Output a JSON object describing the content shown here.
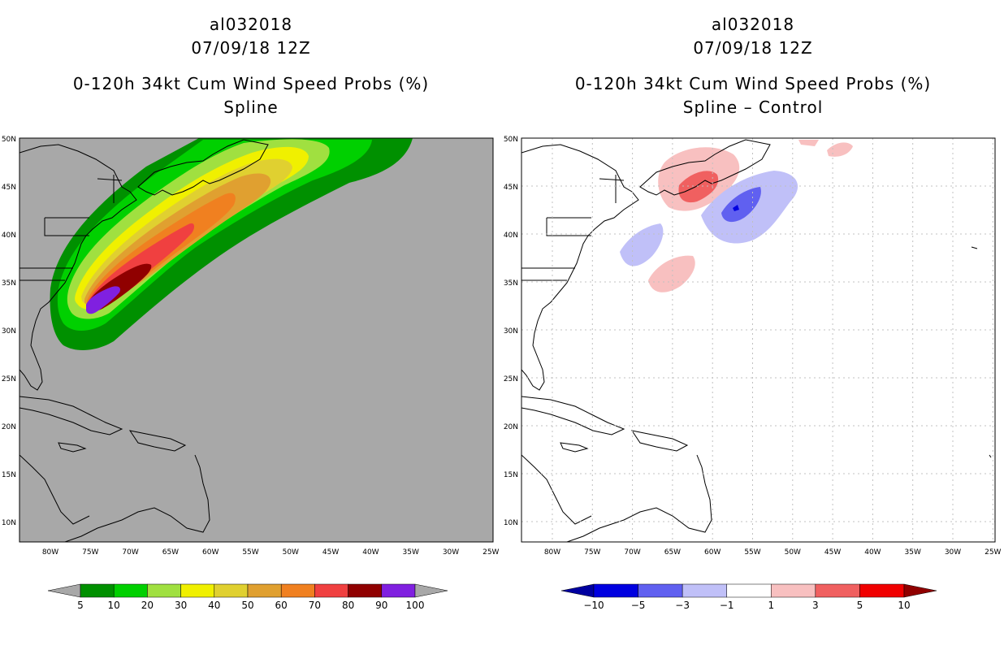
{
  "panels": [
    {
      "storm_id": "al032018",
      "date": "07/09/18 12Z",
      "product": "0-120h 34kt Cum Wind Speed Probs (%)",
      "method": "Spline",
      "background": "#a8a8a8",
      "colorbar": {
        "labels": [
          "5",
          "10",
          "20",
          "30",
          "40",
          "50",
          "60",
          "70",
          "80",
          "90",
          "100"
        ],
        "colors": [
          "#009000",
          "#00d000",
          "#a0e040",
          "#f0f000",
          "#e0d030",
          "#e0a030",
          "#f08020",
          "#f04040",
          "#900000",
          "#8020e0"
        ],
        "under_color": "#a8a8a8",
        "over_color": "#a8a8a8"
      }
    },
    {
      "storm_id": "al032018",
      "date": "07/09/18 12Z",
      "product": "0-120h 34kt Cum Wind Speed Probs (%)",
      "method": "Spline – Control",
      "background": "#ffffff",
      "colorbar": {
        "labels": [
          "−10",
          "−5",
          "−3",
          "−1",
          "1",
          "3",
          "5",
          "10"
        ],
        "colors": [
          "#0000e0",
          "#6060f0",
          "#c0c0f8",
          "#ffffff",
          "#f8c0c0",
          "#f06060",
          "#f00000"
        ],
        "under_color": "#0000a0",
        "over_color": "#900000"
      }
    }
  ],
  "map": {
    "lon_labels": [
      "80W",
      "75W",
      "70W",
      "65W",
      "60W",
      "55W",
      "50W",
      "45W",
      "40W",
      "35W",
      "30W",
      "25W"
    ],
    "lat_labels": [
      "50N",
      "45N",
      "40N",
      "35N",
      "30N",
      "25N",
      "20N",
      "15N",
      "10N"
    ]
  }
}
